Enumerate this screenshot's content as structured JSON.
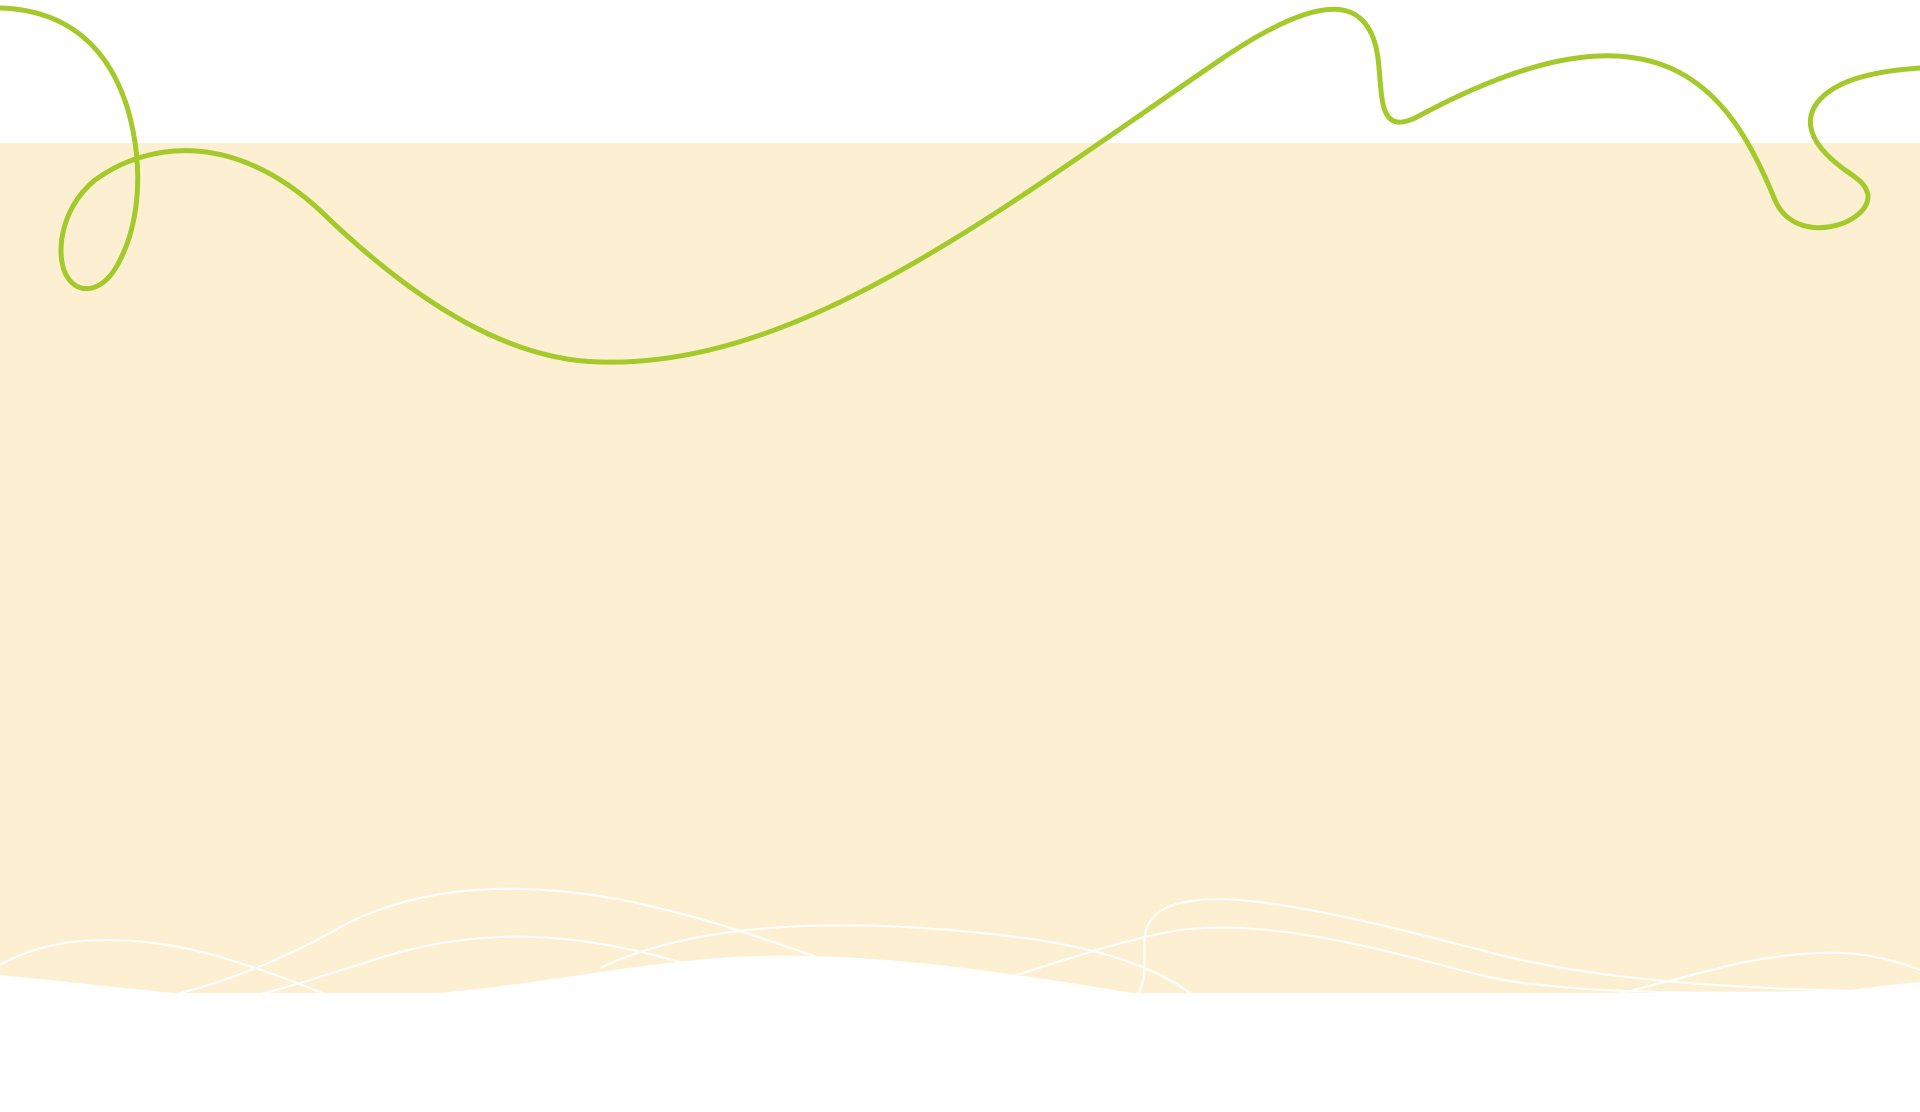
{
  "colors": {
    "page_background": "#ffffff",
    "band_fill": "#fdf0d2",
    "accent_stroke": "#a3c92a",
    "line_stroke": "#ffffff"
  },
  "elements": {
    "top_whitespace": "white-area",
    "cream_band": "cream-rectangle",
    "green_line": "decorative-swirl-line",
    "white_waves": "decorative-wave-lines"
  }
}
